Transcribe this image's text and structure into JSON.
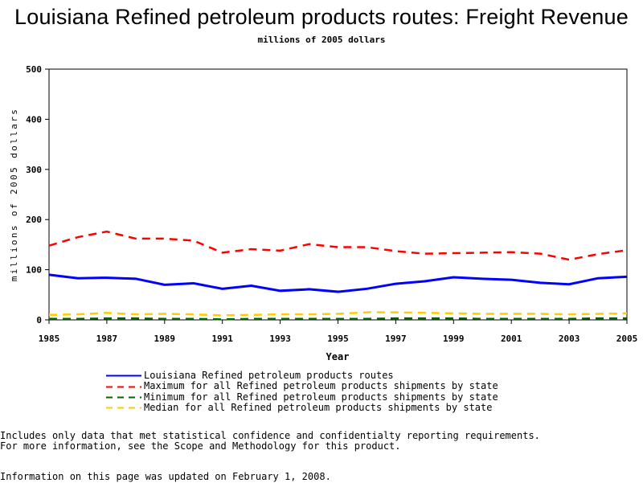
{
  "chart_data": {
    "type": "line",
    "title": "Louisiana Refined petroleum products routes: Freight Revenue",
    "subtitle": "millions of 2005 dollars",
    "xlabel": "Year",
    "ylabel": "millions of 2005 dollars",
    "xlim": [
      1985,
      2005
    ],
    "ylim": [
      0,
      500
    ],
    "x_ticks": [
      "1985",
      "1987",
      "1989",
      "1991",
      "1993",
      "1995",
      "1997",
      "1999",
      "2001",
      "2003",
      "2005"
    ],
    "y_ticks": [
      "0",
      "100",
      "200",
      "300",
      "400",
      "500"
    ],
    "x": [
      1985,
      1986,
      1987,
      1988,
      1989,
      1990,
      1991,
      1992,
      1993,
      1994,
      1995,
      1996,
      1997,
      1998,
      1999,
      2000,
      2001,
      2002,
      2003,
      2004,
      2005
    ],
    "grid": false,
    "legend_position": "bottom",
    "series": [
      {
        "name": "Louisiana Refined petroleum products routes",
        "color": "#0000ff",
        "style": "solid",
        "values": [
          90,
          83,
          84,
          82,
          70,
          73,
          62,
          68,
          58,
          61,
          56,
          62,
          72,
          77,
          85,
          82,
          80,
          74,
          71,
          83,
          86
        ]
      },
      {
        "name": "Maximum for all Refined petroleum products shipments by state",
        "color": "#ff0000",
        "style": "dashed",
        "values": [
          148,
          165,
          176,
          162,
          162,
          158,
          134,
          141,
          138,
          151,
          145,
          145,
          137,
          132,
          133,
          134,
          135,
          132,
          120,
          131,
          139
        ]
      },
      {
        "name": "Minimum for all Refined petroleum products shipments by state",
        "color": "#006400",
        "style": "dashed",
        "values": [
          2,
          2,
          3,
          3,
          2,
          2,
          1,
          2,
          2,
          2,
          2,
          2,
          3,
          3,
          3,
          2,
          2,
          2,
          2,
          3,
          3
        ]
      },
      {
        "name": "Median for all Refined petroleum products shipments by state",
        "color": "#ffcc00",
        "style": "dashed",
        "values": [
          10,
          11,
          14,
          11,
          12,
          11,
          9,
          10,
          11,
          11,
          12,
          15,
          15,
          14,
          13,
          12,
          12,
          12,
          11,
          12,
          13
        ]
      }
    ]
  },
  "footnotes": {
    "line1": "Includes only data that met statistical confidence and confidentialty reporting requirements.",
    "line2": "For more information, see the Scope and Methodology for this product.",
    "updated": "Information on this page was updated on February 1, 2008."
  }
}
